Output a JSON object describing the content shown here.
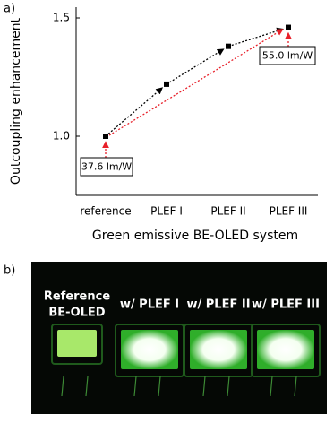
{
  "chart_data": {
    "type": "line",
    "panel_label": "a)",
    "x_label": "Green emissive BE-OLED system",
    "y_label": "Outcoupling enhancement",
    "categories": [
      "reference",
      "PLEF I",
      "PLEF II",
      "PLEF III"
    ],
    "values": [
      1.0,
      1.22,
      1.38,
      1.46
    ],
    "color": "#000000",
    "ylim": [
      0.75,
      1.5
    ],
    "yticks": [
      {
        "value": 1.0,
        "label": "1.0"
      },
      {
        "value": 1.5,
        "label": "1.5"
      }
    ],
    "annotations": [
      "37.6 lm/W",
      "55.0 lm/W"
    ],
    "annotation_color": "#e8202a"
  },
  "photo": {
    "panel_label": "b)",
    "labels": [
      [
        "Reference",
        "BE-OLED"
      ],
      [
        "w/ PLEF I"
      ],
      [
        "w/ PLEF II"
      ],
      [
        "w/ PLEF III"
      ]
    ]
  }
}
